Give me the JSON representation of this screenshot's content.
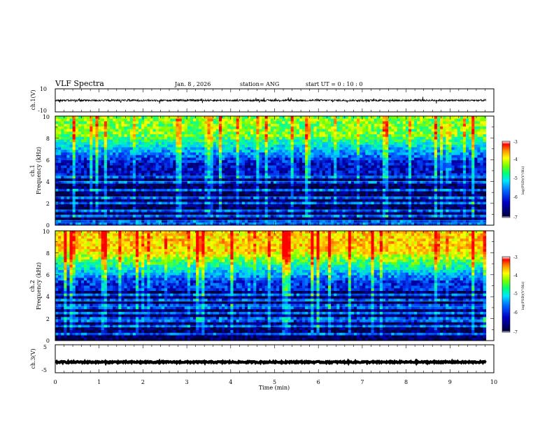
{
  "header": {
    "title": "VLF Spectra",
    "date": "Jan. 8 , 2026",
    "station": "station= ANG",
    "start_ut": "start UT =  0 : 10 : 0"
  },
  "chart_data": [
    {
      "id": "ch1-waveform",
      "type": "line",
      "ylabel": "ch.1(V)",
      "ylim": [
        -10,
        10
      ],
      "yticks": [
        "10",
        "-10"
      ],
      "x_range_min": [
        0,
        9.82
      ],
      "signal": {
        "mean": 0,
        "noise_amplitude": 0.8,
        "spike_amplitude": 2.5
      }
    },
    {
      "id": "ch1-spectrogram",
      "type": "heatmap",
      "ylabel": "ch.1",
      "ylabel2": "Frequency (kHz)",
      "ylim": [
        0,
        10
      ],
      "yticks": [
        "0",
        "2",
        "4",
        "6",
        "8",
        "10"
      ],
      "x_range_min": [
        0,
        9.82
      ],
      "colorbar": {
        "label": "log(PSD)(V²/Hz)",
        "range": [
          -7,
          -3
        ],
        "ticks": [
          "-3",
          "-4",
          "-5",
          "-6",
          "-7"
        ]
      },
      "intensity": {
        "high_freq_level": -4.6,
        "mid_freq_level": -6.4,
        "low_freq_level": -6.9,
        "transition_khz": 5.6,
        "line_features_khz": [
          4.5,
          4.0,
          3.2,
          2.6,
          2.0,
          1.4,
          0.9,
          0.4,
          0.2
        ]
      }
    },
    {
      "id": "ch2-spectrogram",
      "type": "heatmap",
      "ylabel": "ch.2",
      "ylabel2": "Frequency (kHz)",
      "ylim": [
        0,
        10
      ],
      "yticks": [
        "0",
        "2",
        "4",
        "6",
        "8",
        "10"
      ],
      "x_range_min": [
        0,
        9.82
      ],
      "colorbar": {
        "label": "log(PSD)(V²/Hz)",
        "range": [
          -7,
          -3
        ],
        "ticks": [
          "-3",
          "-4",
          "-5",
          "-6",
          "-7"
        ]
      },
      "intensity": {
        "high_freq_level": -4.0,
        "mid_freq_level": -6.2,
        "low_freq_level": -6.9,
        "transition_khz": 5.3,
        "line_features_khz": [
          4.2,
          3.6,
          3.1,
          2.5,
          1.9,
          1.3,
          0.6
        ]
      }
    },
    {
      "id": "ch3-waveform",
      "type": "line",
      "ylabel": "ch.3(V)",
      "ylim": [
        -5,
        5
      ],
      "yticks": [
        "5",
        "-5"
      ],
      "x_range_min": [
        0,
        9.82
      ],
      "signal": {
        "mean": -1.2,
        "noise_amplitude": 0.25
      }
    }
  ],
  "xaxis": {
    "label": "Time (min)",
    "range": [
      0,
      10
    ],
    "ticks": [
      "0",
      "1",
      "2",
      "3",
      "4",
      "5",
      "6",
      "7",
      "8",
      "9",
      "10"
    ]
  },
  "colors": {
    "colormap": [
      "#00003c",
      "#0000b4",
      "#0050ff",
      "#00c8ff",
      "#00ffa0",
      "#78ff00",
      "#ffff00",
      "#ff8c00",
      "#ff0000",
      "#ffffff"
    ]
  }
}
